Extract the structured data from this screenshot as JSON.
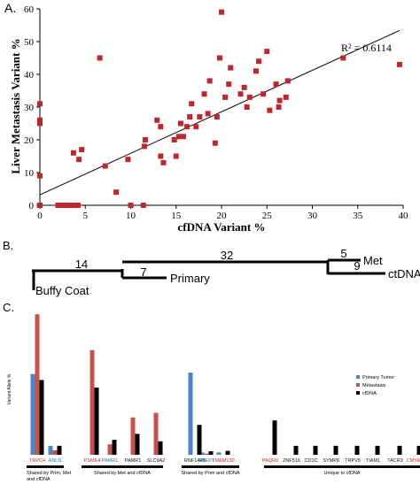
{
  "panel_labels": {
    "a": "A.",
    "b": "B.",
    "c": "C."
  },
  "chart_data": [
    {
      "type": "scatter",
      "xlabel": "cfDNA Variant %",
      "ylabel": "Liver Metastasis Variant %",
      "xlim": [
        0,
        40
      ],
      "ylim": [
        0,
        60
      ],
      "xticks": [
        0,
        5,
        10,
        15,
        20,
        25,
        30,
        35,
        40
      ],
      "yticks": [
        0,
        10,
        20,
        30,
        40,
        50,
        60
      ],
      "r2_label": "R² = 0.6114",
      "trendline": {
        "x": [
          0,
          39.6
        ],
        "y": [
          3.2,
          53.4
        ]
      },
      "marker_color": "#c0272d",
      "points": [
        [
          0,
          0
        ],
        [
          0,
          9
        ],
        [
          0,
          25
        ],
        [
          0,
          26
        ],
        [
          0,
          31
        ],
        [
          2,
          0
        ],
        [
          2.4,
          0
        ],
        [
          2.8,
          0
        ],
        [
          3.1,
          0
        ],
        [
          3.4,
          0
        ],
        [
          3.8,
          0
        ],
        [
          4.2,
          0
        ],
        [
          3.7,
          16
        ],
        [
          4.3,
          14
        ],
        [
          4.6,
          17
        ],
        [
          6.6,
          45
        ],
        [
          7.2,
          12
        ],
        [
          8.4,
          4
        ],
        [
          9.7,
          14
        ],
        [
          10,
          0
        ],
        [
          11.4,
          0
        ],
        [
          11.5,
          18
        ],
        [
          11.6,
          20
        ],
        [
          12.9,
          26
        ],
        [
          13.3,
          15
        ],
        [
          13.3,
          24
        ],
        [
          13.6,
          13
        ],
        [
          14.8,
          20
        ],
        [
          15,
          15
        ],
        [
          15.3,
          21
        ],
        [
          15.5,
          25
        ],
        [
          15.8,
          21
        ],
        [
          16.2,
          24
        ],
        [
          16.5,
          27
        ],
        [
          16.7,
          31
        ],
        [
          17.2,
          24
        ],
        [
          17.6,
          27
        ],
        [
          18.1,
          34
        ],
        [
          18.5,
          28
        ],
        [
          18.7,
          38
        ],
        [
          19.3,
          19
        ],
        [
          19.5,
          27
        ],
        [
          19.8,
          45
        ],
        [
          20,
          59
        ],
        [
          20.4,
          33
        ],
        [
          20.8,
          37
        ],
        [
          21,
          42
        ],
        [
          22.1,
          34
        ],
        [
          22.5,
          36
        ],
        [
          22.8,
          30
        ],
        [
          23.1,
          33
        ],
        [
          23.8,
          41
        ],
        [
          24.1,
          44
        ],
        [
          24.6,
          34
        ],
        [
          25,
          47
        ],
        [
          25.3,
          29
        ],
        [
          26,
          37
        ],
        [
          26.4,
          32
        ],
        [
          27.1,
          33
        ],
        [
          27.3,
          38
        ],
        [
          26.3,
          30
        ],
        [
          33.4,
          45
        ],
        [
          39.6,
          43
        ]
      ]
    },
    {
      "type": "bar",
      "ylabel": "Variant Allele %",
      "ylim": [
        0,
        50
      ],
      "categories": [
        "TRPC4",
        "ANLN",
        "PSME4",
        "PAMR1",
        "PAMR1",
        "SLC9A2",
        "RNF144B",
        "SVEP1",
        "TMEM130",
        "PAQR9",
        "ZNF516",
        "CD1C",
        "SYMPK",
        "TRPV5",
        "TIAM1",
        "TACR3",
        "CMYA5"
      ],
      "category_colors": [
        "#d62728",
        "#1f77b4",
        "#d62728",
        "#1f77b4",
        "#111111",
        "#111111",
        "#111111",
        "#1f77b4",
        "#d62728",
        "#d62728",
        "#111111",
        "#111111",
        "#111111",
        "#111111",
        "#111111",
        "#111111",
        "#d62728"
      ],
      "series": [
        {
          "name": "Primary Tumor",
          "color": "#4a86c4",
          "values": [
            27,
            3,
            0,
            0,
            0,
            0,
            27.5,
            0.8,
            0.8,
            0,
            0,
            0,
            0,
            0,
            0,
            0,
            0
          ]
        },
        {
          "name": "Metastasis",
          "color": "#c9504f",
          "values": [
            47,
            1.5,
            35,
            3.5,
            12.5,
            14,
            0,
            0.4,
            0,
            0,
            0,
            0,
            0,
            0,
            0,
            0,
            0
          ]
        },
        {
          "name": "cfDNA",
          "color": "#000000",
          "values": [
            25,
            3,
            22.5,
            5,
            7,
            4.5,
            10,
            1.2,
            1.3,
            11.5,
            3,
            3,
            3,
            3,
            3,
            3,
            3
          ]
        }
      ],
      "groups": [
        {
          "label": "Shared by Prim, Met\nand cfDNA"
        },
        {
          "label": "Shared by Met and cfDNA"
        },
        {
          "label": "Shared by Prim and cfDNA"
        },
        {
          "label": "Unique to cfDNA"
        }
      ]
    }
  ],
  "tree": {
    "branch_lengths": [
      "14",
      "32",
      "7",
      "5",
      "9"
    ],
    "leaves": [
      "Buffy Coat",
      "Primary",
      "Met",
      "ctDNA"
    ]
  }
}
